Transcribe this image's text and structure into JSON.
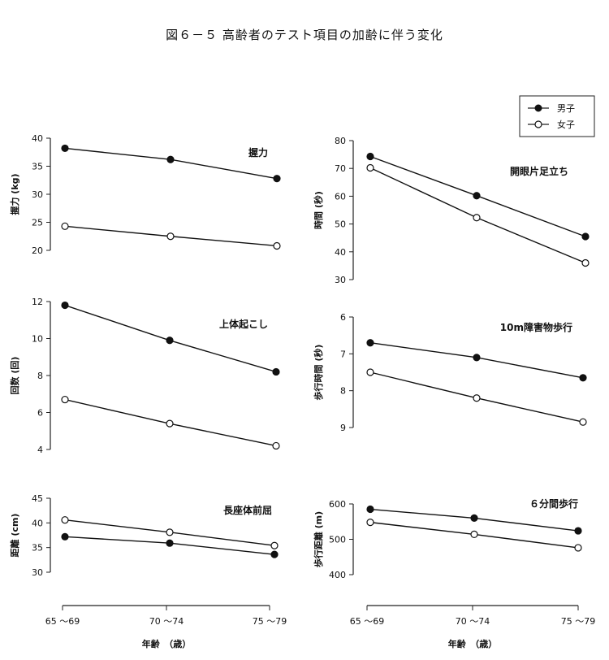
{
  "figure_title": "図６－５ 高齢者のテスト項目の加齢に伴う変化",
  "legend": [
    {
      "label": "男子",
      "marker": "filled"
    },
    {
      "label": "女子",
      "marker": "open"
    }
  ],
  "x_axis": {
    "categories": [
      "65 ～69",
      "70 ～74",
      "75 ～79"
    ],
    "title_left": "年齢　（歳）",
    "title_right": "年齢　（歳）"
  },
  "chart_data": [
    {
      "type": "line",
      "title": "握力",
      "ylabel": "握力 (kg)",
      "categories": [
        "65 ～69",
        "70 ～74",
        "75 ～79"
      ],
      "ylim": [
        20,
        40
      ],
      "yticks": [
        20,
        25,
        30,
        35,
        40
      ],
      "series": [
        {
          "name": "男子",
          "values": [
            38.2,
            36.2,
            32.8
          ]
        },
        {
          "name": "女子",
          "values": [
            24.3,
            22.5,
            20.8
          ]
        }
      ]
    },
    {
      "type": "line",
      "title": "開眼片足立ち",
      "ylabel": "時間 (秒)",
      "categories": [
        "65 ～69",
        "70 ～74",
        "75 ～79"
      ],
      "ylim": [
        30,
        80
      ],
      "yticks": [
        30,
        40,
        50,
        60,
        70,
        80
      ],
      "series": [
        {
          "name": "男子",
          "values": [
            74.3,
            60.2,
            45.5
          ]
        },
        {
          "name": "女子",
          "values": [
            70.2,
            52.3,
            36.0
          ]
        }
      ]
    },
    {
      "type": "line",
      "title": "上体起こし",
      "ylabel": "回数 (回)",
      "categories": [
        "65 ～69",
        "70 ～74",
        "75 ～79"
      ],
      "ylim": [
        4,
        12
      ],
      "yticks": [
        4,
        6,
        8,
        10,
        12
      ],
      "series": [
        {
          "name": "男子",
          "values": [
            11.8,
            9.9,
            8.2
          ]
        },
        {
          "name": "女子",
          "values": [
            6.7,
            5.4,
            4.2
          ]
        }
      ]
    },
    {
      "type": "line",
      "title": "10m障害物歩行",
      "ylabel": "歩行時間 (秒)",
      "categories": [
        "65 ～69",
        "70 ～74",
        "75 ～79"
      ],
      "ylim": [
        9,
        6
      ],
      "yticks": [
        6,
        7,
        8,
        9
      ],
      "inverted": true,
      "series": [
        {
          "name": "男子",
          "values": [
            6.7,
            7.1,
            7.65
          ]
        },
        {
          "name": "女子",
          "values": [
            7.5,
            8.2,
            8.85
          ]
        }
      ]
    },
    {
      "type": "line",
      "title": "長座体前屈",
      "ylabel": "距離 (cm)",
      "categories": [
        "65 ～69",
        "70 ～74",
        "75 ～79"
      ],
      "ylim": [
        30,
        45
      ],
      "yticks": [
        30,
        35,
        40,
        45
      ],
      "series": [
        {
          "name": "男子",
          "values": [
            37.2,
            35.9,
            33.6
          ]
        },
        {
          "name": "女子",
          "values": [
            40.6,
            38.1,
            35.4
          ]
        }
      ]
    },
    {
      "type": "line",
      "title": "６分間歩行",
      "ylabel": "歩行距離 (m)",
      "categories": [
        "65 ～69",
        "70 ～74",
        "75 ～79"
      ],
      "ylim": [
        400,
        600
      ],
      "yticks": [
        400,
        500,
        600
      ],
      "series": [
        {
          "name": "男子",
          "values": [
            585,
            560,
            524
          ]
        },
        {
          "name": "女子",
          "values": [
            548,
            514,
            476
          ]
        }
      ]
    }
  ]
}
